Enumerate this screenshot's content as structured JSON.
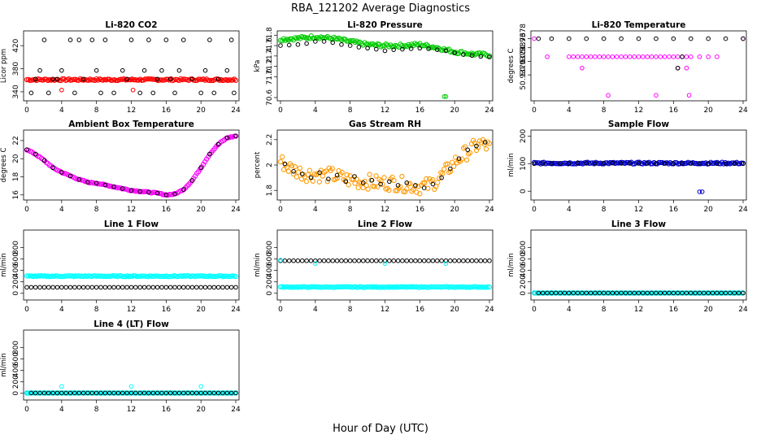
{
  "figure": {
    "title": "RBA_121202  Average Diagnostics",
    "xlabel": "Hour of Day (UTC)"
  },
  "chart_data": [
    {
      "type": "scatter",
      "title": "Li-820 CO2",
      "ylabel": "Licor ppm",
      "xlim": [
        0,
        24
      ],
      "ylim": [
        330,
        440
      ],
      "xticks": [
        0,
        4,
        8,
        12,
        16,
        20,
        24
      ],
      "yticks": [
        340,
        380,
        420
      ],
      "series": [
        {
          "color": "#ff0000",
          "style": "dense",
          "x": [
            0,
            24
          ],
          "y": [
            361,
            361
          ],
          "spread": 1.5
        },
        {
          "color": "#000000",
          "style": "open",
          "x": [
            0.5,
            1,
            1.5,
            2,
            2.5,
            3,
            3.5,
            4,
            5,
            5.5,
            6,
            6.5,
            7.5,
            8,
            8.5,
            9,
            10,
            11,
            11.5,
            12,
            13,
            13.5,
            14,
            14.5,
            15,
            15.5,
            16,
            16.5,
            17,
            17.5,
            18,
            19,
            20,
            20.5,
            21,
            21.5,
            22,
            23,
            23.5,
            23.8
          ],
          "y": [
            338,
            362,
            377,
            430,
            338,
            362,
            362,
            377,
            430,
            338,
            430,
            362,
            430,
            377,
            338,
            430,
            338,
            377,
            362,
            430,
            338,
            377,
            430,
            338,
            362,
            377,
            430,
            362,
            338,
            377,
            430,
            362,
            338,
            377,
            430,
            338,
            362,
            377,
            430,
            338
          ]
        },
        {
          "color": "#ff0000",
          "style": "open",
          "x": [
            4,
            12.2
          ],
          "y": [
            343,
            343
          ]
        }
      ]
    },
    {
      "type": "scatter",
      "title": "Li-820 Pressure",
      "ylabel": "kPa",
      "xlim": [
        0,
        24
      ],
      "ylim": [
        70.6,
        71.82
      ],
      "xticks": [
        0,
        4,
        8,
        12,
        16,
        20,
        24
      ],
      "yticks": [
        70.6,
        71.2,
        71.8
      ],
      "ytick_labels": [
        "70.6",
        "71.2",
        "71.8"
      ],
      "extra_yticks": [
        71.0,
        71.4,
        71.6
      ],
      "extra_ytick_labels": [
        "71.0",
        "71.4",
        "71.6"
      ],
      "series": [
        {
          "color": "#00cc00",
          "style": "dense",
          "x": [
            0,
            2,
            4,
            6,
            8,
            10,
            12,
            14,
            16,
            18,
            20,
            22,
            24
          ],
          "y": [
            71.72,
            71.74,
            71.77,
            71.74,
            71.68,
            71.62,
            71.6,
            71.6,
            71.62,
            71.56,
            71.48,
            71.44,
            71.42
          ],
          "spread": 0.03
        },
        {
          "color": "#000000",
          "style": "open",
          "x": [
            0,
            1,
            2,
            3,
            4,
            5,
            6,
            7,
            8,
            9,
            10,
            11,
            12,
            13,
            14,
            15,
            16,
            17,
            18,
            19,
            20,
            21,
            22,
            23,
            24
          ],
          "y": [
            71.6,
            71.61,
            71.62,
            71.64,
            71.68,
            71.68,
            71.66,
            71.62,
            71.6,
            71.57,
            71.55,
            71.53,
            71.5,
            71.52,
            71.53,
            71.54,
            71.55,
            71.54,
            71.52,
            71.5,
            71.46,
            71.43,
            71.41,
            71.39,
            71.38
          ]
        },
        {
          "color": "#00cc00",
          "style": "open",
          "x": [
            18.8,
            19
          ],
          "y": [
            70.62,
            70.62
          ]
        }
      ]
    },
    {
      "type": "scatter",
      "title": "Li-820 Temperature",
      "ylabel": "degrees C",
      "xlim": [
        0,
        24
      ],
      "ylim": [
        50.9365,
        50.9379
      ],
      "xticks": [
        0,
        4,
        8,
        12,
        16,
        20,
        24
      ],
      "yticks": [
        50.937,
        50.9373,
        50.9376,
        50.9378
      ],
      "ytick_labels": [
        "50.9370",
        "50.9373",
        "50.9376",
        "50.9378"
      ],
      "series": [
        {
          "color": "#ff00ff",
          "style": "open",
          "x": [
            0,
            24
          ],
          "y": [
            50.9378,
            50.9378
          ],
          "spread": 0,
          "dense_count": 60
        },
        {
          "color": "#ff00ff",
          "style": "open",
          "x": [
            1.5,
            4,
            4.5,
            5,
            5.5,
            6,
            6.5,
            7,
            7.5,
            8,
            8.5,
            9,
            9.5,
            10,
            10.5,
            11,
            11.5,
            12,
            12.5,
            13,
            13.5,
            14,
            14.5,
            15,
            15.5,
            16,
            16.5,
            17,
            17.5,
            18,
            19,
            20,
            21
          ],
          "y": [
            50.9374,
            50.9374,
            50.9374,
            50.9374,
            50.9374,
            50.9374,
            50.9374,
            50.9374,
            50.9374,
            50.9374,
            50.9374,
            50.9374,
            50.9374,
            50.9374,
            50.9374,
            50.9374,
            50.9374,
            50.9374,
            50.9374,
            50.9374,
            50.9374,
            50.9374,
            50.9374,
            50.9374,
            50.9374,
            50.9374,
            50.9374,
            50.9374,
            50.9374,
            50.9374,
            50.9374,
            50.9374,
            50.9374
          ]
        },
        {
          "color": "#ff00ff",
          "style": "open",
          "x": [
            5.5,
            8.5,
            14,
            16.5,
            17.5,
            17.8
          ],
          "y": [
            50.93715,
            50.93655,
            50.93655,
            50.93715,
            50.93715,
            50.93655
          ]
        },
        {
          "color": "#000000",
          "style": "open",
          "x": [
            0.5,
            2,
            4,
            6,
            8,
            10,
            12,
            14,
            16,
            16.5,
            17,
            18,
            20,
            22,
            24
          ],
          "y": [
            50.9378,
            50.9378,
            50.9378,
            50.9378,
            50.9378,
            50.9378,
            50.9378,
            50.9378,
            50.9378,
            50.93715,
            50.9374,
            50.9378,
            50.9378,
            50.9378,
            50.9378
          ]
        }
      ]
    },
    {
      "type": "scatter",
      "title": "Ambient Box Temperature",
      "ylabel": "degrees C",
      "xlim": [
        0,
        24
      ],
      "ylim": [
        15.8,
        22.8
      ],
      "xticks": [
        0,
        4,
        8,
        12,
        16,
        20,
        24
      ],
      "yticks": [
        16,
        18,
        20,
        22
      ],
      "series": [
        {
          "color": "#ff00ff",
          "style": "dense",
          "x": [
            0,
            1,
            2,
            3,
            4,
            5,
            6,
            7,
            8,
            9,
            10,
            11,
            12,
            13,
            14,
            15,
            16,
            17,
            18,
            19,
            20,
            21,
            22,
            23,
            24
          ],
          "y": [
            21.0,
            20.5,
            19.8,
            19.0,
            18.5,
            18.1,
            17.7,
            17.4,
            17.3,
            17.1,
            16.9,
            16.7,
            16.5,
            16.4,
            16.3,
            16.2,
            16.0,
            16.1,
            16.6,
            17.6,
            19.0,
            20.5,
            21.6,
            22.3,
            22.5
          ],
          "spread": 0.05
        },
        {
          "color": "#000000",
          "style": "open",
          "x": [
            0,
            1,
            2,
            3,
            4,
            5,
            6,
            7,
            8,
            9,
            10,
            11,
            12,
            13,
            14,
            15,
            16,
            17,
            18,
            19,
            20,
            21,
            22,
            23,
            24
          ],
          "y": [
            21.0,
            20.5,
            19.8,
            19.0,
            18.5,
            18.1,
            17.7,
            17.4,
            17.3,
            17.1,
            16.9,
            16.7,
            16.5,
            16.4,
            16.3,
            16.2,
            16.0,
            16.1,
            16.6,
            17.6,
            19.0,
            20.5,
            21.6,
            22.3,
            22.5
          ]
        }
      ]
    },
    {
      "type": "scatter",
      "title": "Gas Stream RH",
      "ylabel": "percent",
      "xlim": [
        0,
        24
      ],
      "ylim": [
        1.75,
        2.25
      ],
      "xticks": [
        0,
        4,
        8,
        12,
        16,
        20,
        24
      ],
      "yticks": [
        1.8,
        2.0,
        2.2
      ],
      "series": [
        {
          "color": "#ff9900",
          "style": "dense",
          "x": [
            0,
            1,
            2,
            3,
            4,
            5,
            6,
            7,
            8,
            9,
            10,
            11,
            12,
            13,
            14,
            15,
            16,
            17,
            18,
            19,
            20,
            21,
            22,
            23,
            24
          ],
          "y": [
            2.03,
            1.98,
            1.95,
            1.93,
            1.93,
            1.92,
            1.92,
            1.9,
            1.88,
            1.87,
            1.87,
            1.86,
            1.86,
            1.86,
            1.85,
            1.84,
            1.83,
            1.84,
            1.88,
            1.95,
            2.02,
            2.08,
            2.13,
            2.17,
            2.14
          ],
          "spread": 0.06
        },
        {
          "color": "#000000",
          "style": "open",
          "x": [
            0.5,
            1.5,
            2.5,
            3.5,
            4.5,
            5.5,
            6.5,
            7.5,
            8.5,
            9.5,
            10.5,
            11.5,
            12.5,
            13.5,
            14.5,
            15.5,
            16.5,
            17.5,
            18.5,
            19.5,
            20.5,
            21.5,
            22.5,
            23.5
          ],
          "y": [
            2.01,
            1.95,
            1.93,
            1.9,
            1.94,
            1.89,
            1.92,
            1.87,
            1.91,
            1.86,
            1.88,
            1.85,
            1.87,
            1.84,
            1.86,
            1.84,
            1.82,
            1.85,
            1.9,
            1.97,
            2.05,
            2.12,
            2.15,
            2.18
          ]
        }
      ]
    },
    {
      "type": "scatter",
      "title": "Sample Flow",
      "ylabel": "ml/min",
      "xlim": [
        0,
        24
      ],
      "ylim": [
        -20,
        210
      ],
      "xticks": [
        0,
        4,
        8,
        12,
        16,
        20,
        24
      ],
      "yticks": [
        0,
        100,
        200
      ],
      "series": [
        {
          "color": "#0000cc",
          "style": "dense",
          "x": [
            0,
            24
          ],
          "y": [
            102,
            102
          ],
          "spread": 3
        },
        {
          "color": "#000000",
          "style": "open",
          "x": [
            0,
            1,
            2,
            3,
            4,
            5,
            6,
            7,
            8,
            9,
            10,
            11,
            12,
            13,
            14,
            15,
            16,
            17,
            18,
            19,
            20,
            21,
            22,
            23,
            24
          ],
          "y": [
            100,
            100,
            101,
            101,
            101,
            102,
            101,
            101,
            102,
            102,
            101,
            101,
            101,
            101,
            101,
            101,
            101,
            101,
            101,
            101,
            100,
            100,
            100,
            100,
            100
          ]
        },
        {
          "color": "#0000cc",
          "style": "open",
          "x": [
            19.0,
            19.3
          ],
          "y": [
            -2,
            -2
          ]
        }
      ]
    },
    {
      "type": "scatter",
      "title": "Line 1 Flow",
      "ylabel": "ml/min",
      "xlim": [
        0,
        24
      ],
      "ylim": [
        -60,
        1050
      ],
      "xticks": [
        0,
        4,
        8,
        12,
        16,
        20,
        24
      ],
      "yticks": [
        0,
        200,
        400,
        600,
        800
      ],
      "series": [
        {
          "color": "#00ffff",
          "style": "dense",
          "x": [
            0,
            24
          ],
          "y": [
            300,
            300
          ],
          "spread": 8
        },
        {
          "color": "#000000",
          "style": "open",
          "x": [
            0,
            24
          ],
          "y": [
            105,
            105
          ],
          "count": 49
        }
      ]
    },
    {
      "type": "scatter",
      "title": "Line 2 Flow",
      "ylabel": "ml/min",
      "xlim": [
        0,
        24
      ],
      "ylim": [
        -60,
        1050
      ],
      "xticks": [
        0,
        4,
        8,
        12,
        16,
        20,
        24
      ],
      "yticks": [
        0,
        200,
        400,
        600,
        800
      ],
      "series": [
        {
          "color": "#00ffff",
          "style": "dense",
          "x": [
            0,
            24
          ],
          "y": [
            110,
            110
          ],
          "spread": 6
        },
        {
          "color": "#000000",
          "style": "open",
          "x": [
            0,
            24
          ],
          "y": [
            570,
            570
          ],
          "count": 49
        },
        {
          "color": "#00ffff",
          "style": "open",
          "x": [
            0,
            4,
            12,
            19
          ],
          "y": [
            580,
            520,
            520,
            520
          ]
        }
      ]
    },
    {
      "type": "scatter",
      "title": "Line 3 Flow",
      "ylabel": "ml/min",
      "xlim": [
        0,
        24
      ],
      "ylim": [
        -60,
        1050
      ],
      "xticks": [
        0,
        4,
        8,
        12,
        16,
        20,
        24
      ],
      "yticks": [
        0,
        200,
        400,
        600,
        800
      ],
      "series": [
        {
          "color": "#00ffff",
          "style": "dense",
          "x": [
            0,
            24
          ],
          "y": [
            5,
            5
          ],
          "spread": 2
        },
        {
          "color": "#000000",
          "style": "open",
          "x": [
            0,
            24
          ],
          "y": [
            5,
            5
          ],
          "count": 49
        },
        {
          "color": "#00ffff",
          "style": "open",
          "x": [
            0
          ],
          "y": [
            5
          ]
        }
      ]
    },
    {
      "type": "scatter",
      "title": "Line 4 (LT) Flow",
      "ylabel": "ml/min",
      "xlim": [
        0,
        24
      ],
      "ylim": [
        -60,
        1050
      ],
      "xticks": [
        0,
        4,
        8,
        12,
        16,
        20,
        24
      ],
      "yticks": [
        0,
        200,
        400,
        600,
        800
      ],
      "series": [
        {
          "color": "#00ffff",
          "style": "dense",
          "x": [
            0,
            24
          ],
          "y": [
            5,
            5
          ],
          "spread": 2
        },
        {
          "color": "#000000",
          "style": "open",
          "x": [
            0,
            24
          ],
          "y": [
            5,
            5
          ],
          "count": 49
        },
        {
          "color": "#00ffff",
          "style": "open",
          "x": [
            0,
            4,
            12,
            20
          ],
          "y": [
            5,
            120,
            120,
            120
          ]
        }
      ]
    }
  ]
}
